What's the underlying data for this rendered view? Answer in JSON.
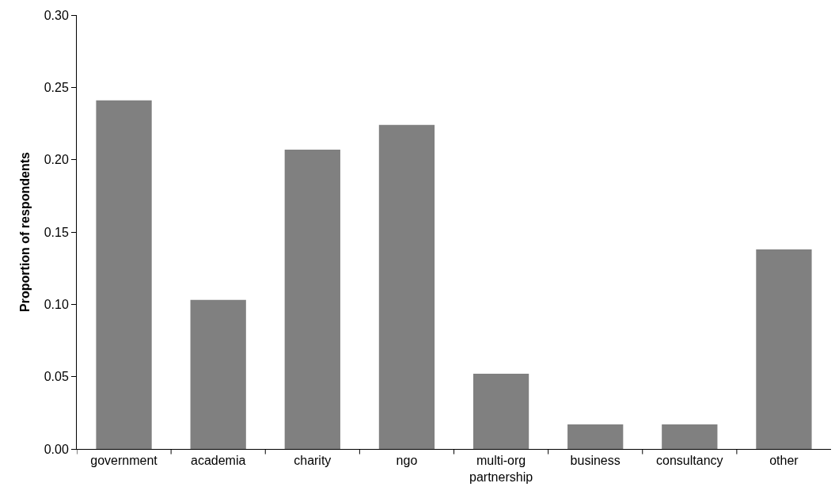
{
  "chart_data": {
    "type": "bar",
    "ylabel": "Proportion of respondents",
    "categories": [
      "government",
      "academia",
      "charity",
      "ngo",
      "multi-org partnership",
      "business",
      "consultancy",
      "other"
    ],
    "values": [
      0.241,
      0.103,
      0.207,
      0.224,
      0.052,
      0.017,
      0.017,
      0.138
    ],
    "color": "#808080",
    "ylim": [
      0,
      0.3
    ],
    "yticks": [
      {
        "value": 0,
        "label": "0.00"
      },
      {
        "value": 0.05,
        "label": "0.05"
      },
      {
        "value": 0.1,
        "label": "0.10"
      },
      {
        "value": 0.15,
        "label": "0.15"
      },
      {
        "value": 0.2,
        "label": "0.20"
      },
      {
        "value": 0.25,
        "label": "0.25"
      },
      {
        "value": 0.3,
        "label": "0.30"
      }
    ],
    "tick_labels": "xy"
  }
}
